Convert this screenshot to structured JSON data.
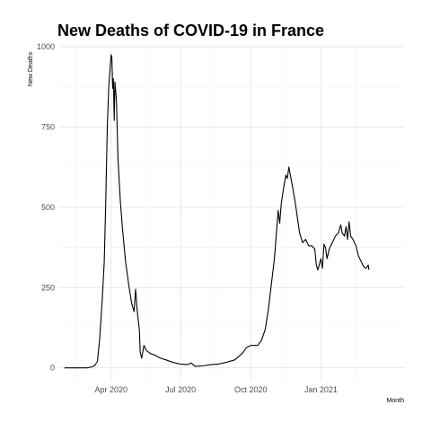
{
  "chart_data": {
    "type": "line",
    "title": "New Deaths of COVID-19 in France",
    "xlabel": "Month",
    "ylabel": "New Deaths",
    "x_range": [
      "2020-01-24",
      "2021-04-20"
    ],
    "ylim": [
      -40,
      1000
    ],
    "grid": true,
    "x_ticks": [
      {
        "date": "2020-04-01",
        "label": "Apr 2020"
      },
      {
        "date": "2020-07-01",
        "label": "Jul 2020"
      },
      {
        "date": "2020-10-01",
        "label": "Oct 2020"
      },
      {
        "date": "2021-01-01",
        "label": "Jan 2021"
      }
    ],
    "y_ticks": [
      0,
      250,
      500,
      750,
      1000
    ],
    "series": [
      {
        "points": [
          [
            "2020-01-31",
            0
          ],
          [
            "2020-02-29",
            0
          ],
          [
            "2020-03-05",
            2
          ],
          [
            "2020-03-10",
            6
          ],
          [
            "2020-03-14",
            20
          ],
          [
            "2020-03-17",
            90
          ],
          [
            "2020-03-20",
            200
          ],
          [
            "2020-03-23",
            330
          ],
          [
            "2020-03-25",
            520
          ],
          [
            "2020-03-27",
            750
          ],
          [
            "2020-03-29",
            880
          ],
          [
            "2020-04-01",
            975
          ],
          [
            "2020-04-02",
            965
          ],
          [
            "2020-04-03",
            870
          ],
          [
            "2020-04-04",
            900
          ],
          [
            "2020-04-05",
            770
          ],
          [
            "2020-04-06",
            890
          ],
          [
            "2020-04-08",
            830
          ],
          [
            "2020-04-10",
            650
          ],
          [
            "2020-04-13",
            520
          ],
          [
            "2020-04-16",
            430
          ],
          [
            "2020-04-20",
            330
          ],
          [
            "2020-04-24",
            260
          ],
          [
            "2020-04-28",
            200
          ],
          [
            "2020-05-01",
            175
          ],
          [
            "2020-05-03",
            245
          ],
          [
            "2020-05-05",
            180
          ],
          [
            "2020-05-08",
            120
          ],
          [
            "2020-05-09",
            50
          ],
          [
            "2020-05-11",
            30
          ],
          [
            "2020-05-14",
            70
          ],
          [
            "2020-05-17",
            55
          ],
          [
            "2020-05-22",
            45
          ],
          [
            "2020-05-28",
            40
          ],
          [
            "2020-06-05",
            30
          ],
          [
            "2020-06-12",
            25
          ],
          [
            "2020-06-20",
            18
          ],
          [
            "2020-06-30",
            12
          ],
          [
            "2020-07-10",
            10
          ],
          [
            "2020-07-15",
            15
          ],
          [
            "2020-07-20",
            5
          ],
          [
            "2020-07-30",
            6
          ],
          [
            "2020-08-10",
            10
          ],
          [
            "2020-08-20",
            12
          ],
          [
            "2020-08-31",
            18
          ],
          [
            "2020-09-10",
            25
          ],
          [
            "2020-09-20",
            45
          ],
          [
            "2020-09-25",
            62
          ],
          [
            "2020-10-01",
            70
          ],
          [
            "2020-10-10",
            70
          ],
          [
            "2020-10-15",
            85
          ],
          [
            "2020-10-20",
            120
          ],
          [
            "2020-10-24",
            180
          ],
          [
            "2020-10-28",
            260
          ],
          [
            "2020-11-01",
            340
          ],
          [
            "2020-11-04",
            430
          ],
          [
            "2020-11-06",
            490
          ],
          [
            "2020-11-08",
            450
          ],
          [
            "2020-11-10",
            510
          ],
          [
            "2020-11-13",
            560
          ],
          [
            "2020-11-16",
            600
          ],
          [
            "2020-11-18",
            590
          ],
          [
            "2020-11-20",
            625
          ],
          [
            "2020-11-22",
            600
          ],
          [
            "2020-11-25",
            560
          ],
          [
            "2020-11-28",
            520
          ],
          [
            "2020-12-01",
            470
          ],
          [
            "2020-12-04",
            420
          ],
          [
            "2020-12-08",
            390
          ],
          [
            "2020-12-12",
            400
          ],
          [
            "2020-12-16",
            380
          ],
          [
            "2020-12-20",
            380
          ],
          [
            "2020-12-24",
            370
          ],
          [
            "2020-12-26",
            320
          ],
          [
            "2020-12-28",
            305
          ],
          [
            "2021-01-01",
            340
          ],
          [
            "2021-01-03",
            310
          ],
          [
            "2021-01-05",
            385
          ],
          [
            "2021-01-07",
            375
          ],
          [
            "2021-01-09",
            340
          ],
          [
            "2021-01-12",
            370
          ],
          [
            "2021-01-16",
            390
          ],
          [
            "2021-01-20",
            410
          ],
          [
            "2021-01-24",
            420
          ],
          [
            "2021-01-27",
            445
          ],
          [
            "2021-01-29",
            420
          ],
          [
            "2021-02-01",
            410
          ],
          [
            "2021-02-03",
            440
          ],
          [
            "2021-02-05",
            400
          ],
          [
            "2021-02-07",
            455
          ],
          [
            "2021-02-09",
            410
          ],
          [
            "2021-02-12",
            400
          ],
          [
            "2021-02-16",
            380
          ],
          [
            "2021-02-19",
            350
          ],
          [
            "2021-02-23",
            330
          ],
          [
            "2021-02-26",
            315
          ],
          [
            "2021-03-01",
            310
          ],
          [
            "2021-03-04",
            320
          ],
          [
            "2021-03-05",
            305
          ]
        ],
        "color": "#000000"
      }
    ]
  }
}
